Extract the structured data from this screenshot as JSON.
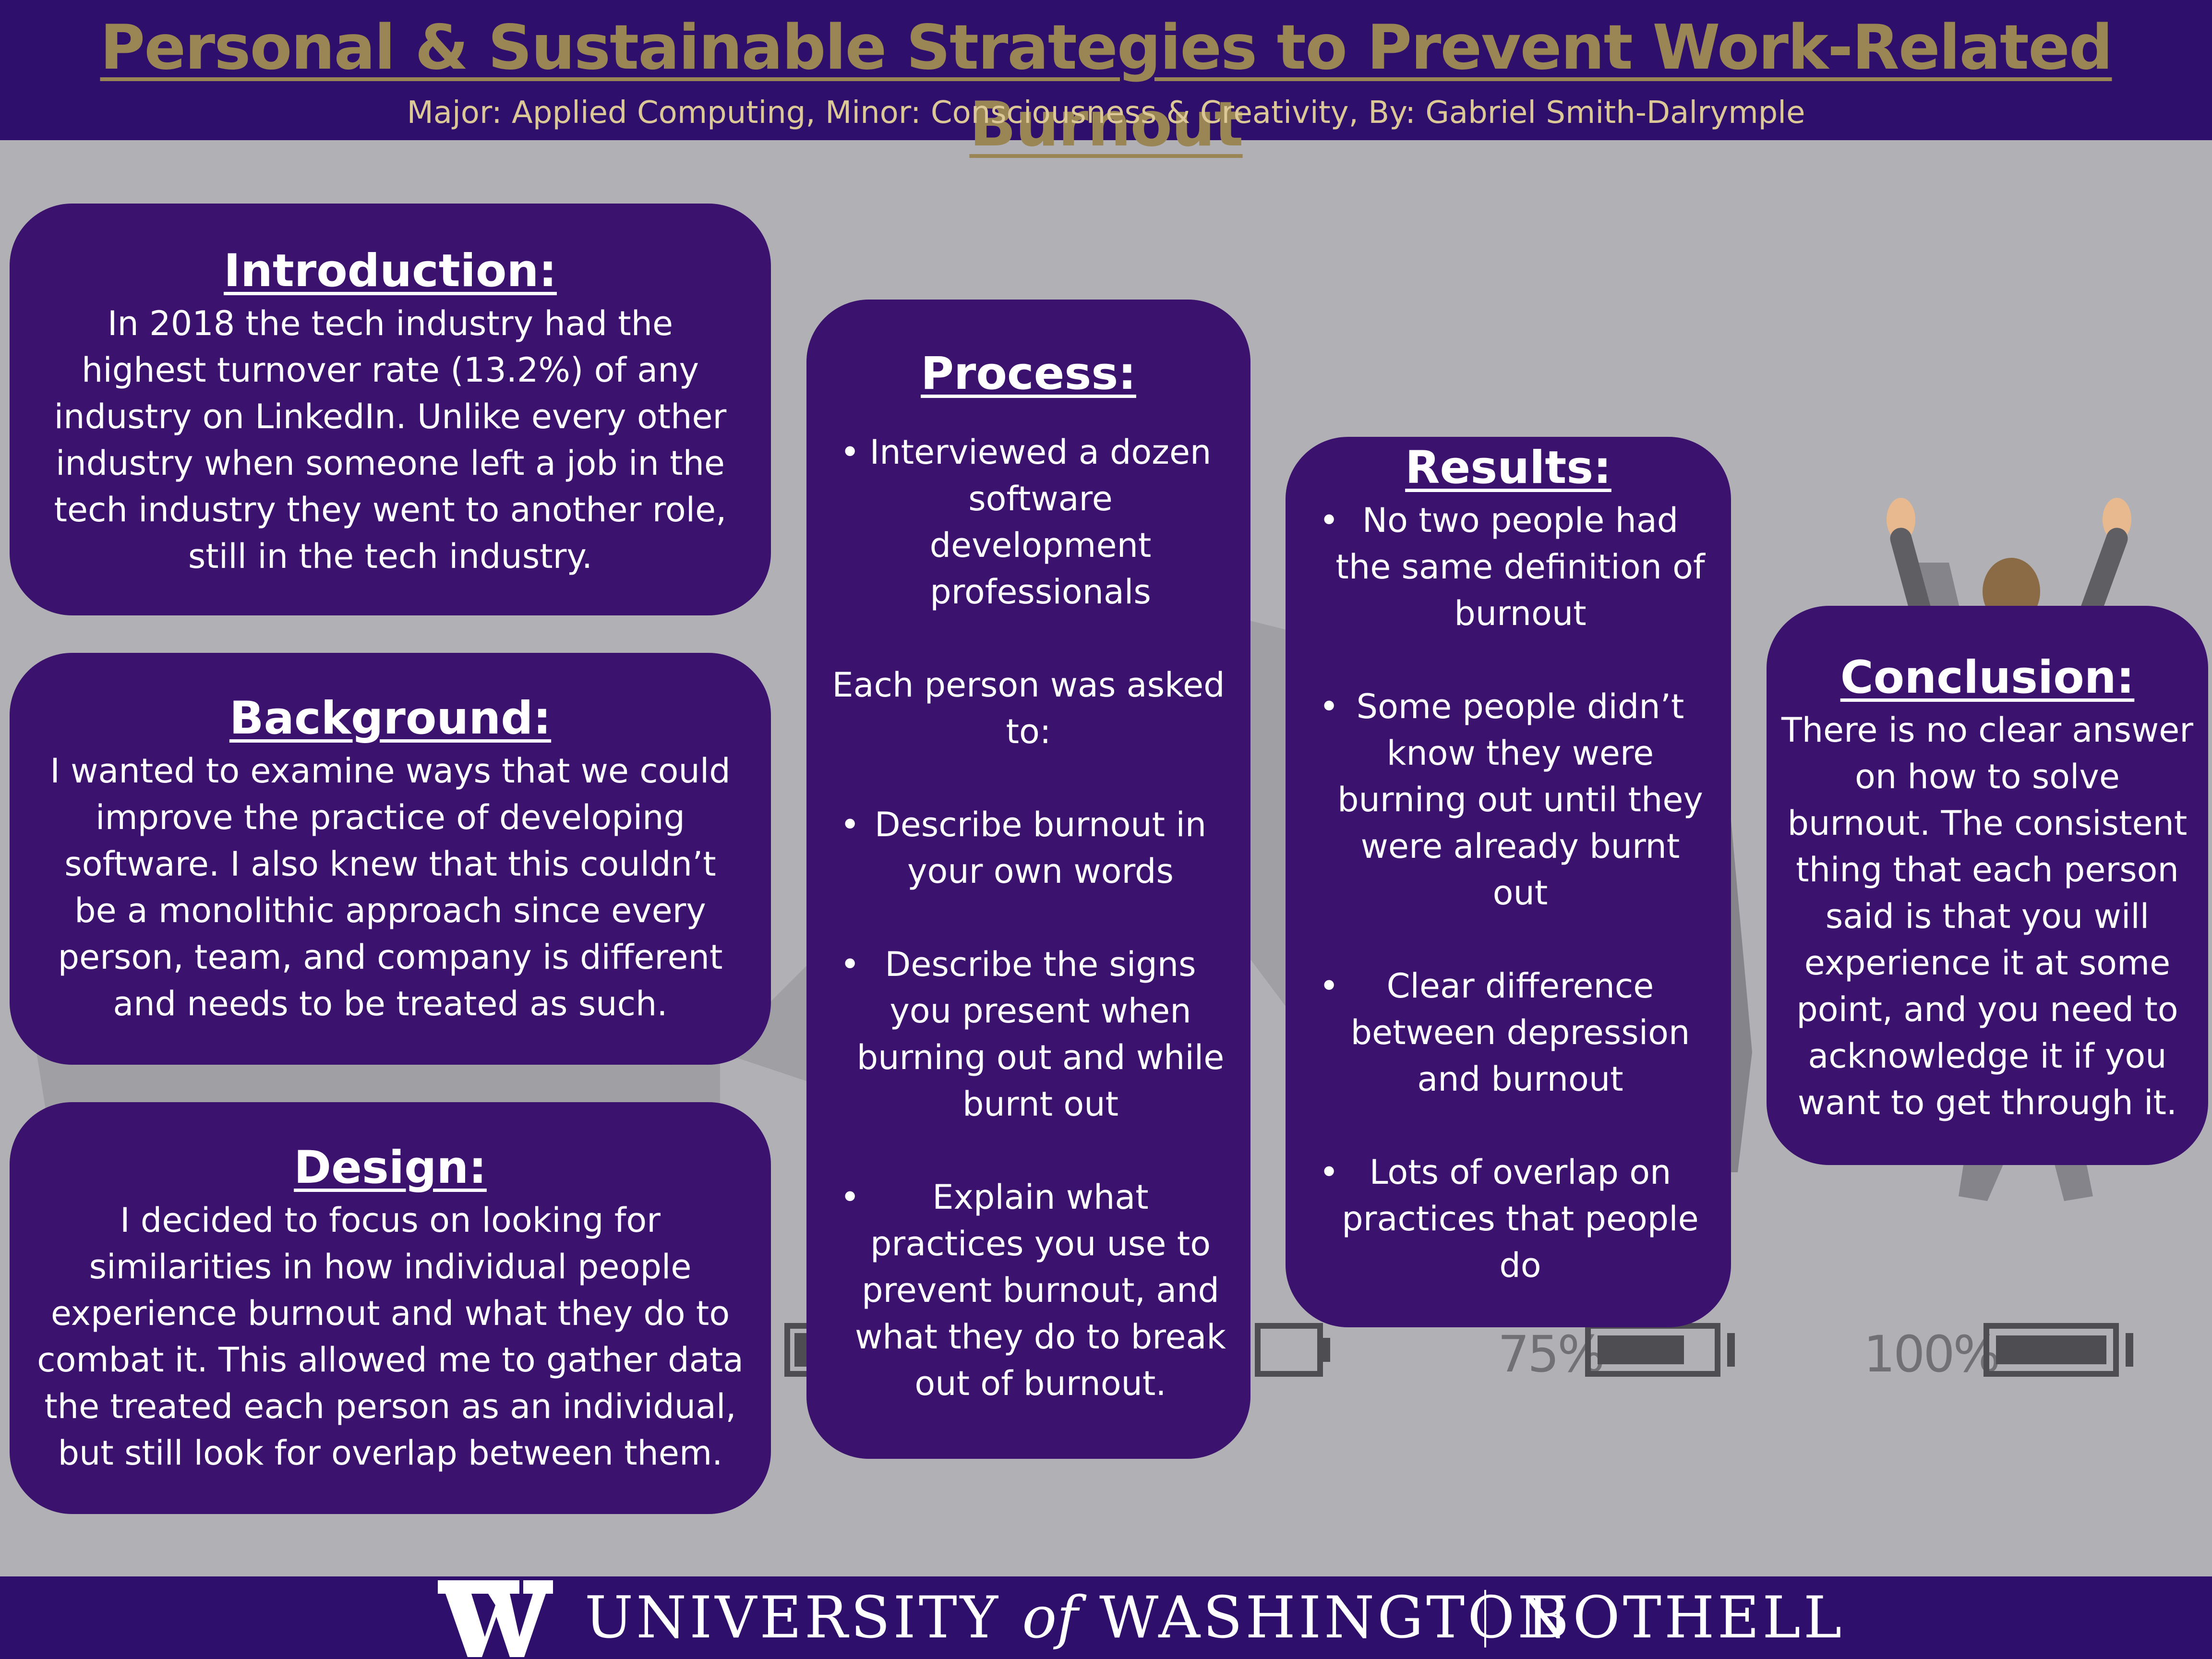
{
  "header": {
    "title": "Personal & Sustainable Strategies to Prevent Work-Related Burnout",
    "subtitle": "Major: Applied Computing, Minor: Consciousness & Creativity, By: Gabriel Smith-Dalrymple"
  },
  "illustration": {
    "battery_labels": [
      "75%",
      "100%"
    ],
    "battery_levels": [
      0.25,
      0.5,
      0.75,
      1.0
    ]
  },
  "introduction": {
    "heading": "Introduction:",
    "text": "In 2018 the tech industry had the highest turnover rate (13.2%) of any industry on LinkedIn. Unlike every other industry when someone left a job in the tech industry they went to another role, still in the tech industry."
  },
  "background": {
    "heading": "Background:",
    "text": "I wanted to examine ways that we could improve the practice of developing software. I also knew that this couldn’t be a monolithic approach since every person, team, and company is different and needs to be treated as such."
  },
  "design": {
    "heading": "Design:",
    "text": "I decided to focus on looking for similarities in how individual people experience burnout and what they do to combat it. This allowed me to gather data the treated each person as an individual, but still look for overlap between them."
  },
  "process": {
    "heading": "Process:",
    "bullet_1": "Interviewed a dozen software development professionals",
    "question_intro": "Each person was asked to:",
    "questions": [
      "Describe burnout in your own words",
      "Describe the signs you present when burning out and while burnt out",
      "Explain what practices you use to prevent burnout, and what they do to break out of burnout."
    ]
  },
  "results": {
    "heading": "Results:",
    "items": [
      "No two people had the same definition of burnout",
      "Some people didn’t know they were burning out until they were already burnt out",
      "Clear difference between depression and burnout",
      "Lots of overlap on practices that people do"
    ]
  },
  "conclusion": {
    "heading": "Conclusion:",
    "text": "There is no clear answer on how to solve burnout. The consistent thing that each person said is that you will experience it at some point, and you need to acknowledge it if you want to get through it."
  },
  "footer": {
    "university": "UNIVERSITY",
    "of": "of",
    "washington": "WASHINGTON",
    "campus": "BOTHELL",
    "colors": {
      "purple": "#2e0f6b",
      "gold": "#9a8555",
      "white": "#ffffff"
    }
  }
}
